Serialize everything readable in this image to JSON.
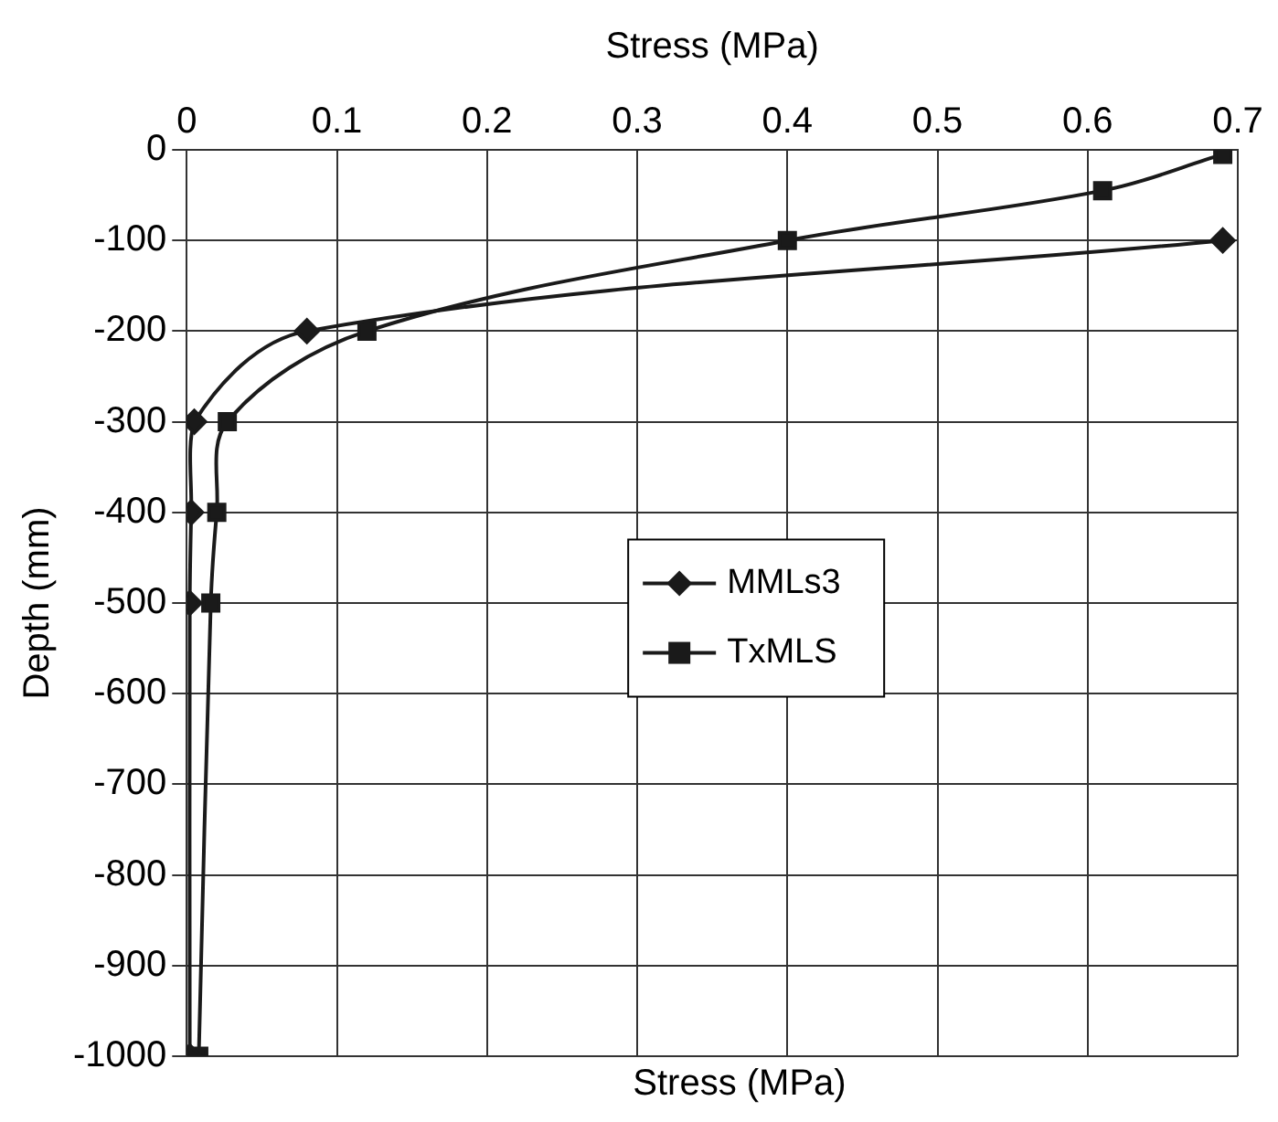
{
  "chart_data": {
    "type": "line",
    "xlabel": "Stress (MPa)",
    "ylabel": "Depth (mm)",
    "annotations": [
      "Stress (MPa)"
    ],
    "xlim": [
      0,
      0.7
    ],
    "xticks": [
      0,
      0.1,
      0.2,
      0.3,
      0.4,
      0.5,
      0.6,
      0.7
    ],
    "ylim": [
      -1000,
      0
    ],
    "yticks": [
      0,
      -100,
      -200,
      -300,
      -400,
      -500,
      -600,
      -700,
      -800,
      -900,
      -1000
    ],
    "grid": true,
    "legend": "center",
    "line_style": "solid",
    "series": [
      {
        "name": "MMLs3",
        "color": "#1a1a1a",
        "marker": "diamond",
        "x": [
          0.69,
          0.08,
          0.005,
          0.003,
          0.002,
          0.002
        ],
        "values": [
          -100,
          -200,
          -300,
          -400,
          -500,
          -1000
        ]
      },
      {
        "name": "TxMLS",
        "color": "#1a1a1a",
        "marker": "square",
        "x": [
          0.69,
          0.61,
          0.4,
          0.12,
          0.027,
          0.02,
          0.016,
          0.008
        ],
        "values": [
          -5,
          -45,
          -100,
          -200,
          -300,
          -400,
          -500,
          -1000
        ]
      }
    ]
  }
}
